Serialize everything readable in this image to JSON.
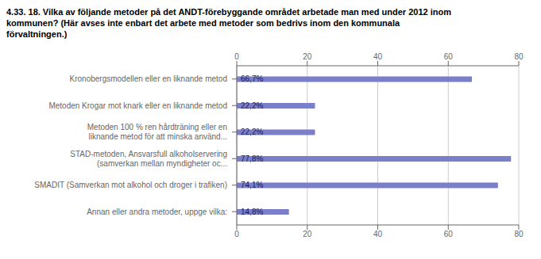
{
  "chart_data": {
    "type": "bar",
    "title": "4.33. 18. Vilka av följande metoder på det ANDT-förebyggande området arbetade man med under 2012 inom\nkommunen? (Här avses inte enbart det arbete med metoder som bedrivs inom den kommunala\nförvaltningen.)",
    "categories": [
      "Annan eller andra metoder, uppge vilka:",
      "SMADIT (Samverkan mot alkohol och droger i trafiken)",
      "STAD-metoden, Ansvarsfull alkoholservering\n(samverkan mellan myndigheter oc...",
      "Metoden 100 % ren hårdträning eller en\nliknande metod för att minska använd...",
      "Metoden Krogar mot knark eller en liknande metod",
      "Kronobergsmodellen eller en liknande metod"
    ],
    "values": [
      14.8,
      74.1,
      77.8,
      22.2,
      22.2,
      66.7
    ],
    "value_labels": [
      "14,8%",
      "74,1%",
      "77,8%",
      "22,2%",
      "22,2%",
      "66,7%"
    ],
    "data_labels": true,
    "color": "#7b7ec8",
    "orientation": "horizontal",
    "xlim": [
      0,
      80
    ],
    "xticks": [
      0,
      20,
      40,
      60,
      80
    ],
    "grid": true
  }
}
